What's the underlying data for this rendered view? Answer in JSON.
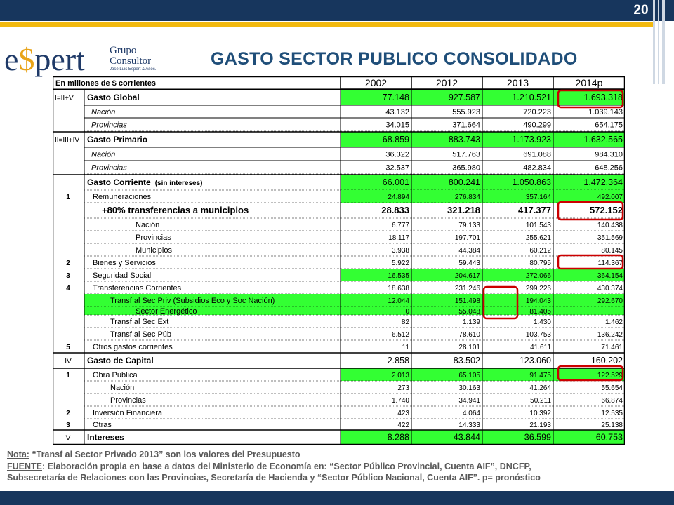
{
  "page_number": "20",
  "logo": {
    "brand": "e$pert",
    "line1": "Grupo",
    "line2": "Consultor",
    "line3": "José Luis Espert & Asoc."
  },
  "title": "GASTO SECTOR PUBLICO CONSOLIDADO",
  "table": {
    "unit_label": "En millones de $ corrientes",
    "years": [
      "2002",
      "2012",
      "2013",
      "2014p"
    ],
    "rows": [
      {
        "code": "I=II+V",
        "label": "Gasto Global",
        "suffix": "",
        "style": "main",
        "values": [
          "77.148",
          "927.587",
          "1.210.521",
          "1.693.318"
        ],
        "green": true
      },
      {
        "code": "",
        "label": "Nación",
        "suffix": "",
        "style": "italic",
        "values": [
          "43.132",
          "555.923",
          "720.223",
          "1.039.143"
        ],
        "green": false
      },
      {
        "code": "",
        "label": "Provincias",
        "suffix": "",
        "style": "italic",
        "values": [
          "34.015",
          "371.664",
          "490.299",
          "654.175"
        ],
        "green": false
      },
      {
        "code": "II=III+IV",
        "label": "Gasto Primario",
        "suffix": "",
        "style": "main",
        "values": [
          "68.859",
          "883.743",
          "1.173.923",
          "1.632.565"
        ],
        "green": true
      },
      {
        "code": "",
        "label": "Nación",
        "suffix": "",
        "style": "italic",
        "values": [
          "36.322",
          "517.763",
          "691.088",
          "984.310"
        ],
        "green": false
      },
      {
        "code": "",
        "label": "Provincias",
        "suffix": "",
        "style": "italic",
        "values": [
          "32.537",
          "365.980",
          "482.834",
          "648.256"
        ],
        "green": false
      },
      {
        "code": "",
        "label": "Gasto Corriente",
        "suffix": "(sin intereses)",
        "style": "main",
        "values": [
          "66.001",
          "800.241",
          "1.050.863",
          "1.472.364"
        ],
        "green": true
      },
      {
        "code": "1",
        "label": "Remuneraciones",
        "suffix": "",
        "style": "sub",
        "values": [
          "24.894",
          "276.834",
          "357.164",
          "492.007"
        ],
        "green": true
      },
      {
        "code": "",
        "label": "+80% transferencias a municipios",
        "suffix": "",
        "style": "bigbold",
        "values": [
          "28.833",
          "321.218",
          "417.377",
          "572.152"
        ],
        "green": false
      },
      {
        "code": "",
        "label": "Nación",
        "suffix": "",
        "style": "sub3",
        "values": [
          "6.777",
          "79.133",
          "101.543",
          "140.438"
        ],
        "green": false
      },
      {
        "code": "",
        "label": "Provincias",
        "suffix": "",
        "style": "sub3",
        "values": [
          "18.117",
          "197.701",
          "255.621",
          "351.569"
        ],
        "green": false
      },
      {
        "code": "",
        "label": "Municipios",
        "suffix": "",
        "style": "sub3",
        "values": [
          "3.938",
          "44.384",
          "60.212",
          "80.145"
        ],
        "green": false
      },
      {
        "code": "2",
        "label": "Bienes y Servicios",
        "suffix": "",
        "style": "sub",
        "values": [
          "5.922",
          "59.443",
          "80.795",
          "114.367"
        ],
        "green": false
      },
      {
        "code": "3",
        "label": "Seguridad Social",
        "suffix": "",
        "style": "sub",
        "values": [
          "16.535",
          "204.617",
          "272.066",
          "364.154"
        ],
        "green": true
      },
      {
        "code": "4",
        "label": "Transferencias Corrientes",
        "suffix": "",
        "style": "sub",
        "values": [
          "18.638",
          "231.246",
          "299.226",
          "430.374"
        ],
        "green": false
      },
      {
        "code": "",
        "label": "Transf al Sec Priv (Subsidios Eco y Soc Nación)",
        "suffix": "",
        "style": "sub2",
        "values": [
          "12.044",
          "151.498",
          "194.043",
          "292.670"
        ],
        "green": "full"
      },
      {
        "code": "",
        "label": "Sector Energético",
        "suffix": "",
        "style": "sub3",
        "values": [
          "0",
          "55.048",
          "81.405",
          ""
        ],
        "green": "full"
      },
      {
        "code": "",
        "label": "Transf al Sec Ext",
        "suffix": "",
        "style": "sub2",
        "values": [
          "82",
          "1.139",
          "1.430",
          "1.462"
        ],
        "green": false
      },
      {
        "code": "",
        "label": "Transf al Sec Púb",
        "suffix": "",
        "style": "sub2",
        "values": [
          "6.512",
          "78.610",
          "103.753",
          "136.242"
        ],
        "green": false
      },
      {
        "code": "5",
        "label": "Otros gastos corrientes",
        "suffix": "",
        "style": "sub",
        "values": [
          "11",
          "28.101",
          "41.611",
          "71.461"
        ],
        "green": false
      },
      {
        "code": "IV",
        "label": "Gasto de Capital",
        "suffix": "",
        "style": "main",
        "values": [
          "2.858",
          "83.502",
          "123.060",
          "160.202"
        ],
        "green": false
      },
      {
        "code": "1",
        "label": "Obra Pública",
        "suffix": "",
        "style": "sub",
        "values": [
          "2.013",
          "65.105",
          "91.475",
          "122.529"
        ],
        "green": true
      },
      {
        "code": "",
        "label": "Nación",
        "suffix": "",
        "style": "sub2",
        "values": [
          "273",
          "30.163",
          "41.264",
          "55.654"
        ],
        "green": false
      },
      {
        "code": "",
        "label": "Provincias",
        "suffix": "",
        "style": "sub2",
        "values": [
          "1.740",
          "34.941",
          "50.211",
          "66.874"
        ],
        "green": false
      },
      {
        "code": "2",
        "label": "Inversión Financiera",
        "suffix": "",
        "style": "sub",
        "values": [
          "423",
          "4.064",
          "10.392",
          "12.535"
        ],
        "green": false
      },
      {
        "code": "3",
        "label": "Otras",
        "suffix": "",
        "style": "sub",
        "values": [
          "422",
          "14.333",
          "21.193",
          "25.138"
        ],
        "green": false
      },
      {
        "code": "V",
        "label": "Intereses",
        "suffix": "",
        "style": "main",
        "values": [
          "8.288",
          "43.844",
          "36.599",
          "60.753"
        ],
        "green": true
      }
    ]
  },
  "notes": {
    "nota_label": "Nota:",
    "nota_text": " “Transf al Sector Privado 2013” son los valores del Presupuesto",
    "fuente_label": "FUENTE",
    "fuente_text": ": Elaboración propia en base a datos del Ministerio de Economía en: “Sector Público Provincial, Cuenta AIF”, DNCFP,",
    "fuente_line2": "Subsecretaría de Relaciones con las Provincias, Secretaría de Hacienda y “Sector Público Nacional, Cuenta AIF”.   p= pronóstico"
  },
  "colors": {
    "navy": "#17365d",
    "gold": "#f2b90f",
    "green": "#33ff33",
    "highlight_red": "#cc0000",
    "title_blue": "#1f4e79"
  }
}
